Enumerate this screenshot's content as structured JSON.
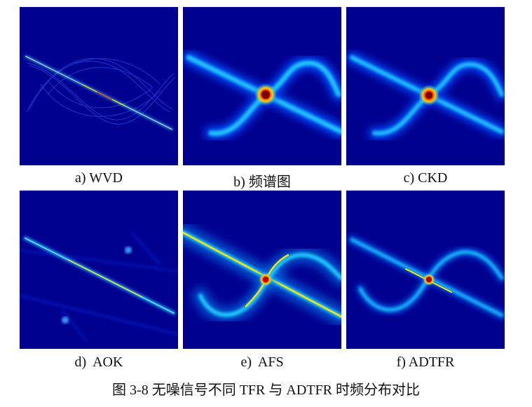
{
  "panels": [
    {
      "id": "wvd",
      "caption": "a) WVD"
    },
    {
      "id": "spectrogram",
      "caption": "b) 频谱图"
    },
    {
      "id": "ckd",
      "caption": "c) CKD"
    },
    {
      "id": "aok",
      "caption": "d)  AOK"
    },
    {
      "id": "afs",
      "caption": "e)  AFS"
    },
    {
      "id": "adtfr",
      "caption": "f) ADTFR"
    }
  ],
  "figure_caption": "图 3-8 无噪信号不同 TFR 与 ADTFR 时频分布对比",
  "colors": {
    "background": "#00008f",
    "cyan": "#20c8ff",
    "yellow": "#ffe000",
    "red": "#c00000"
  }
}
